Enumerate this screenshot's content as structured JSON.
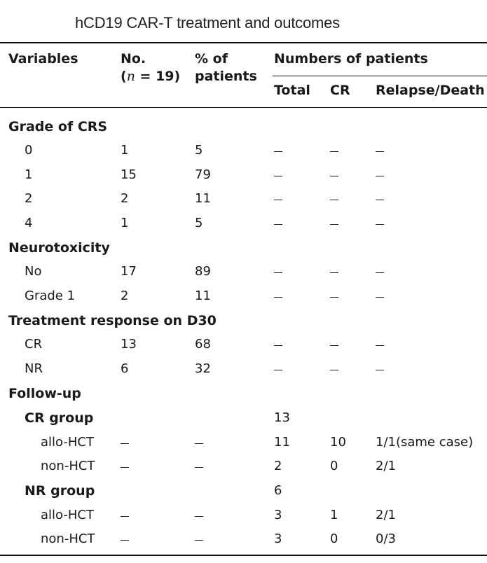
{
  "caption": "hCD19 CAR-T treatment and outcomes",
  "headers": {
    "variables": "Variables",
    "no_line1": "No.",
    "no_open": "(",
    "no_n": "n",
    "no_rest": " = 19)",
    "pct_line1": "% of",
    "pct_line2": "patients",
    "numbers_of_patients": "Numbers of patients",
    "total": "Total",
    "cr": "CR",
    "relapse_death": "Relapse/Death"
  },
  "sections": {
    "crs": "Grade of CRS",
    "neuro": "Neurotoxicity",
    "response": "Treatment response on D30",
    "followup": "Follow-up",
    "cr_group": "CR group",
    "nr_group": "NR group"
  },
  "rows": {
    "crs0": {
      "label": "0",
      "no": "1",
      "pct": "5"
    },
    "crs1": {
      "label": "1",
      "no": "15",
      "pct": "79"
    },
    "crs2": {
      "label": "2",
      "no": "2",
      "pct": "11"
    },
    "crs4": {
      "label": "4",
      "no": "1",
      "pct": "5"
    },
    "neuro_no": {
      "label": "No",
      "no": "17",
      "pct": "89"
    },
    "neuro_g1": {
      "label": "Grade 1",
      "no": "2",
      "pct": "11"
    },
    "resp_cr": {
      "label": "CR",
      "no": "13",
      "pct": "68"
    },
    "resp_nr": {
      "label": "NR",
      "no": "6",
      "pct": "32"
    },
    "cr_group_total": "13",
    "cr_allo": {
      "label": "allo-HCT",
      "total": "11",
      "cr": "10",
      "relapse_death": "1/1(same case)"
    },
    "cr_non": {
      "label": "non-HCT",
      "total": "2",
      "cr": "0",
      "relapse_death": "2/1"
    },
    "nr_group_total": "6",
    "nr_allo": {
      "label": "allo-HCT",
      "total": "3",
      "cr": "1",
      "relapse_death": "2/1"
    },
    "nr_non": {
      "label": "non-HCT",
      "total": "3",
      "cr": "0",
      "relapse_death": "0/3"
    }
  }
}
